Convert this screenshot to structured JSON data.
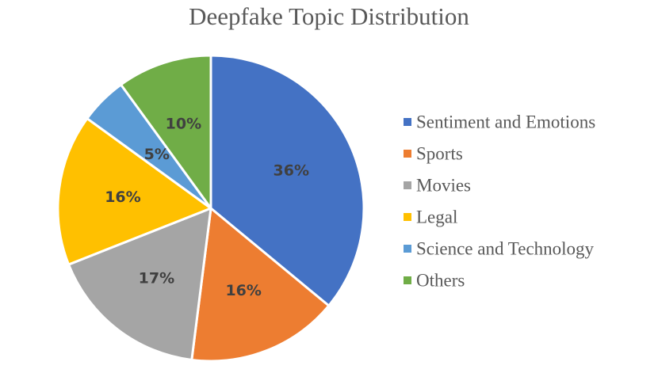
{
  "chart_data": {
    "type": "pie",
    "title": "Deepfake Topic Distribution",
    "series": [
      {
        "name": "Sentiment and Emotions",
        "value": 36,
        "label": "36%",
        "color": "#4472C4"
      },
      {
        "name": "Sports",
        "value": 16,
        "label": "16%",
        "color": "#ED7D31"
      },
      {
        "name": "Movies",
        "value": 17,
        "label": "17%",
        "color": "#A5A5A5"
      },
      {
        "name": "Legal",
        "value": 16,
        "label": "16%",
        "color": "#FFC000"
      },
      {
        "name": "Science and Technology",
        "value": 5,
        "label": "5%",
        "color": "#5B9BD5"
      },
      {
        "name": "Others",
        "value": 10,
        "label": "10%",
        "color": "#70AD47"
      }
    ],
    "legend_position": "right"
  }
}
